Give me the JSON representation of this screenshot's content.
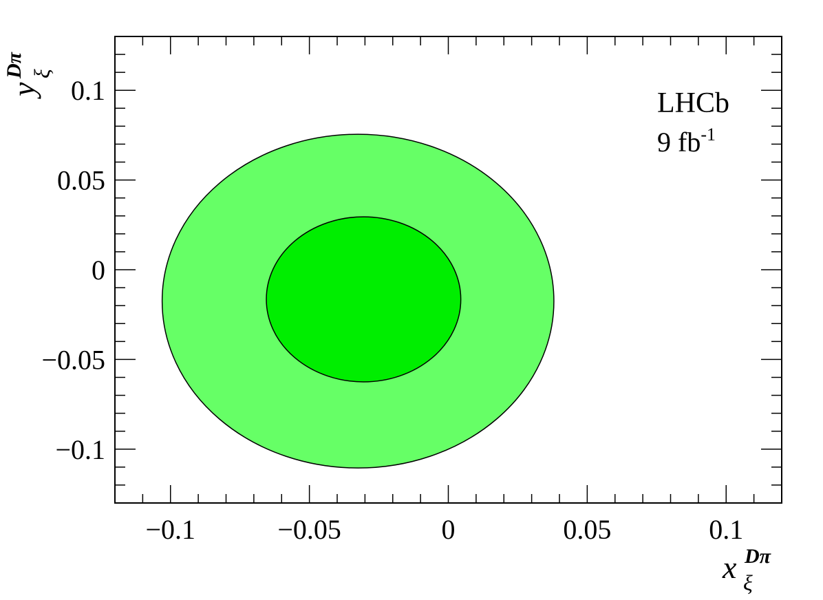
{
  "chart_data": {
    "type": "contour",
    "experiment_label": "LHCb",
    "luminosity_label": "9 fb",
    "luminosity_superscript": "-1",
    "x_axis": {
      "symbol": "x",
      "subscript": "ξ",
      "superscript": "Dπ",
      "range": [
        -0.12,
        0.12
      ],
      "ticks": [
        -0.1,
        -0.05,
        0,
        0.05,
        0.1
      ],
      "tick_labels": [
        "−0.1",
        "−0.05",
        "0",
        "0.05",
        "0.1"
      ],
      "minor_step": 0.01
    },
    "y_axis": {
      "symbol": "y",
      "subscript": "ξ",
      "superscript": "Dπ",
      "range": [
        -0.13,
        0.13
      ],
      "ticks": [
        -0.1,
        -0.05,
        0,
        0.05,
        0.1
      ],
      "tick_labels": [
        "−0.1",
        "−0.05",
        "0",
        "0.05",
        "0.1"
      ],
      "minor_step": 0.01
    },
    "regions": [
      {
        "level": "outer",
        "center": [
          -0.0325,
          -0.0175
        ],
        "half_widths": [
          0.0705,
          0.093
        ],
        "color": "#66ff66"
      },
      {
        "level": "inner",
        "center": [
          -0.0305,
          -0.0165
        ],
        "half_widths": [
          0.035,
          0.046
        ],
        "color": "#00ee00"
      }
    ],
    "grid": false
  }
}
